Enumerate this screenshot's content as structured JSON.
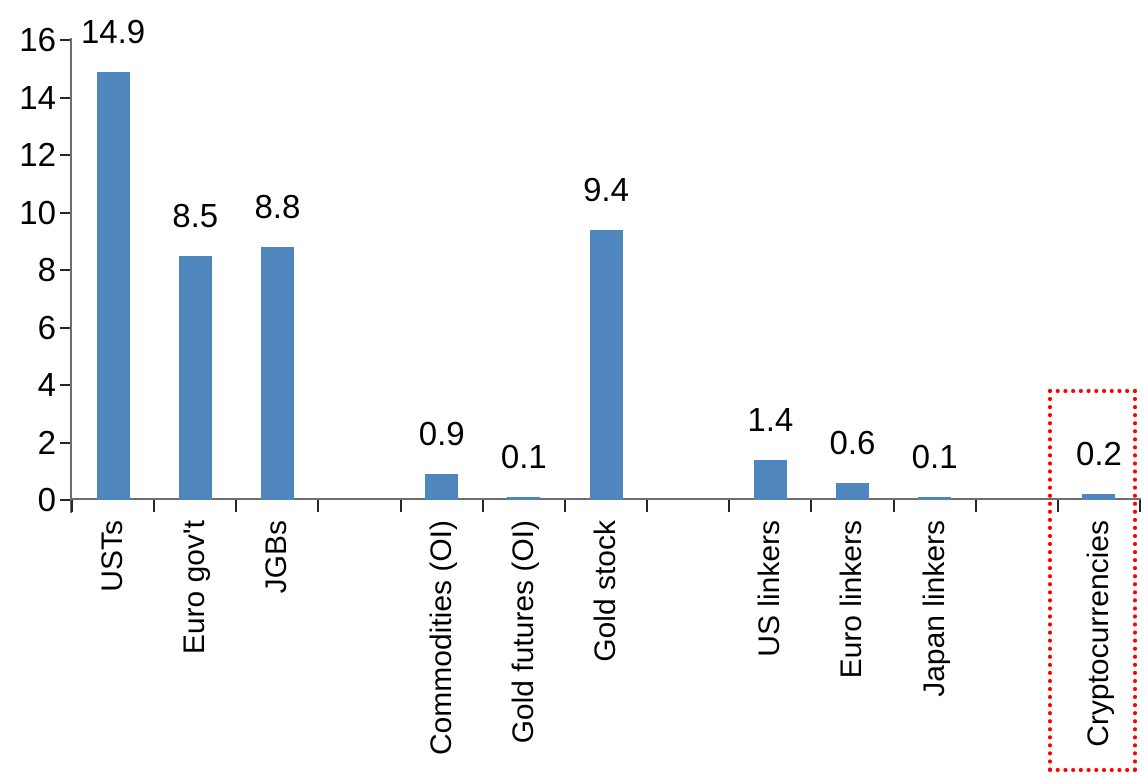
{
  "chart_data": {
    "type": "bar",
    "title": "",
    "xlabel": "",
    "ylabel": "",
    "categories": [
      "USTs",
      "Euro gov't",
      "JGBs",
      "",
      "Commodities (OI)",
      "Gold futures (OI)",
      "Gold stock",
      "",
      "US linkers",
      "Euro linkers",
      "Japan linkers",
      "",
      "Cryptocurrencies"
    ],
    "values": [
      14.9,
      8.5,
      8.8,
      null,
      0.9,
      0.1,
      9.4,
      null,
      1.4,
      0.6,
      0.1,
      null,
      0.2
    ],
    "value_labels": [
      "14.9",
      "8.5",
      "8.8",
      "",
      "0.9",
      "0.1",
      "9.4",
      "",
      "1.4",
      "0.6",
      "0.1",
      "",
      "0.2"
    ],
    "y_ticks": [
      "16",
      "14",
      "12",
      "10",
      "8",
      "6",
      "4",
      "2",
      "0"
    ],
    "y_tick_values": [
      16,
      14,
      12,
      10,
      8,
      6,
      4,
      2,
      0
    ],
    "ylim": [
      0,
      16
    ],
    "grid": false,
    "legend": null,
    "bar_color": "#4f86be",
    "highlight": {
      "category": "Cryptocurrencies",
      "style": "red-dotted-outline",
      "color": "#ff0000"
    }
  }
}
